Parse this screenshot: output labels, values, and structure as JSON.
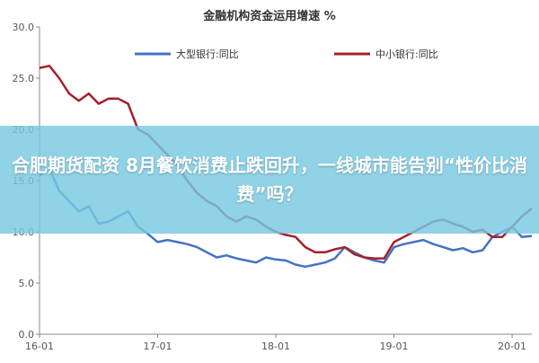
{
  "headline": "合肥期货配资 8月餐饮消费止跌回升，一线城市能告别“性价比消费”吗？",
  "chart_data": {
    "type": "line",
    "title": "金融机构资金运用增速 %",
    "xlabel": "",
    "ylabel": "",
    "x_ticks": [
      "16-01",
      "17-01",
      "18-01",
      "19-01",
      "20-01"
    ],
    "y_ticks": [
      "0.0",
      "5.0",
      "10.0",
      "15.0",
      "20.0",
      "25.0",
      "30.0"
    ],
    "xlim": [
      0,
      50
    ],
    "ylim": [
      0,
      30
    ],
    "grid": false,
    "legend": "top",
    "series": [
      {
        "name": "大型银行:同比",
        "color": "#4472c4",
        "values": [
          15.5,
          16.2,
          14.0,
          13.0,
          12.0,
          12.5,
          10.8,
          11.0,
          11.5,
          12.0,
          10.5,
          9.8,
          9.0,
          9.2,
          9.0,
          8.8,
          8.5,
          8.0,
          7.5,
          7.7,
          7.4,
          7.2,
          7.0,
          7.5,
          7.3,
          7.2,
          6.8,
          6.6,
          6.8,
          7.0,
          7.4,
          8.5,
          8.0,
          7.5,
          7.2,
          7.0,
          8.5,
          8.8,
          9.0,
          9.2,
          8.8,
          8.5,
          8.2,
          8.4,
          8.0,
          8.2,
          9.5,
          10.0,
          10.5,
          9.5,
          9.6
        ]
      },
      {
        "name": "中小银行:同比",
        "color": "#a5202a",
        "values": [
          26.0,
          26.2,
          25.0,
          23.5,
          22.8,
          23.5,
          22.5,
          23.0,
          23.0,
          22.5,
          20.0,
          19.5,
          18.5,
          17.5,
          16.5,
          15.0,
          13.8,
          13.0,
          12.5,
          11.5,
          11.0,
          11.5,
          11.2,
          10.5,
          10.0,
          9.7,
          9.5,
          8.5,
          8.0,
          8.0,
          8.3,
          8.5,
          7.8,
          7.5,
          7.4,
          7.4,
          9.0,
          9.5,
          10.0,
          10.5,
          11.0,
          11.2,
          10.8,
          10.5,
          10.0,
          10.2,
          9.5,
          9.5,
          10.5,
          11.5,
          12.3
        ]
      }
    ]
  }
}
